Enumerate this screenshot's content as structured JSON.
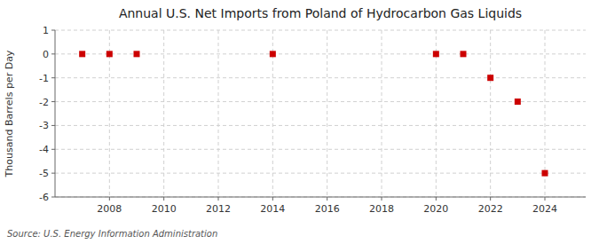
{
  "chart_data": {
    "type": "scatter",
    "title": "Annual U.S. Net Imports from Poland of Hydrocarbon Gas Liquids",
    "ylabel": "Thousand Barrels per Day",
    "source": "Source: U.S. Energy Information Administration",
    "x": [
      2007,
      2008,
      2009,
      2014,
      2020,
      2021,
      2022,
      2023,
      2024
    ],
    "values": [
      0,
      0,
      0,
      0,
      0,
      0,
      -1,
      -2,
      -5
    ],
    "color": "#cc0000",
    "marker": "square",
    "xlim": [
      2006.0,
      2025.5
    ],
    "ylim": [
      -6,
      1
    ],
    "xticks": [
      2008,
      2010,
      2012,
      2014,
      2016,
      2018,
      2020,
      2022,
      2024
    ],
    "yticks": [
      1,
      0,
      -1,
      -2,
      -3,
      -4,
      -5,
      -6
    ],
    "grid": true
  }
}
